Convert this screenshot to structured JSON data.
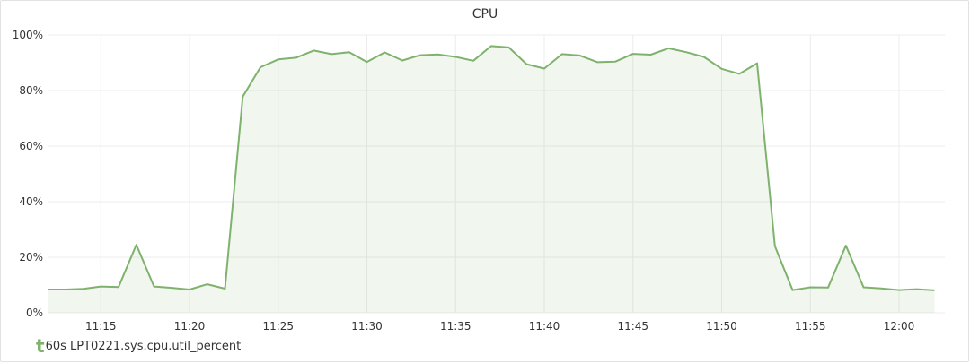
{
  "panel": {
    "title": "CPU"
  },
  "legend": {
    "marker": "t",
    "label": "60s LPT0221.sys.cpu.util_percent"
  },
  "colors": {
    "series": "#7eb26d",
    "fill": "rgba(126,178,109,0.11)",
    "grid": "#ececec",
    "tick_text": "#333333"
  },
  "chart_data": {
    "type": "area",
    "title": "CPU",
    "xlabel": "",
    "ylabel": "",
    "ylim": [
      0,
      100
    ],
    "y_ticks": [
      0,
      20,
      40,
      60,
      80,
      100
    ],
    "y_tick_labels": [
      "0%",
      "20%",
      "40%",
      "60%",
      "80%",
      "100%"
    ],
    "x_range": [
      "11:12",
      "12:02"
    ],
    "x_tick_labels": [
      "11:15",
      "11:20",
      "11:25",
      "11:30",
      "11:35",
      "11:40",
      "11:45",
      "11:50",
      "11:55",
      "12:00"
    ],
    "grid": true,
    "legend_position": "bottom-left",
    "series": [
      {
        "name": "60s LPT0221.sys.cpu.util_percent",
        "x": [
          "11:12",
          "11:13",
          "11:14",
          "11:15",
          "11:16",
          "11:17",
          "11:18",
          "11:19",
          "11:20",
          "11:21",
          "11:22",
          "11:23",
          "11:24",
          "11:25",
          "11:26",
          "11:27",
          "11:28",
          "11:29",
          "11:30",
          "11:31",
          "11:32",
          "11:33",
          "11:34",
          "11:35",
          "11:36",
          "11:37",
          "11:38",
          "11:39",
          "11:40",
          "11:41",
          "11:42",
          "11:43",
          "11:44",
          "11:45",
          "11:46",
          "11:47",
          "11:48",
          "11:49",
          "11:50",
          "11:51",
          "11:52",
          "11:53",
          "11:54",
          "11:55",
          "11:56",
          "11:57",
          "11:58",
          "11:59",
          "12:00",
          "12:01",
          "12:02"
        ],
        "values": [
          8.4,
          8.4,
          8.6,
          9.5,
          9.3,
          24.5,
          9.5,
          9.0,
          8.4,
          10.3,
          8.7,
          77.8,
          88.4,
          91.2,
          91.8,
          94.4,
          93.1,
          93.8,
          90.3,
          93.7,
          90.8,
          92.7,
          93.0,
          92.1,
          90.7,
          96.0,
          95.5,
          89.5,
          87.9,
          93.1,
          92.6,
          90.2,
          90.4,
          93.2,
          92.9,
          95.2,
          93.8,
          92.1,
          87.8,
          86.0,
          89.8,
          24.0,
          8.2,
          9.2,
          9.1,
          24.2,
          9.2,
          8.8,
          8.2,
          8.5,
          8.1
        ]
      }
    ]
  }
}
